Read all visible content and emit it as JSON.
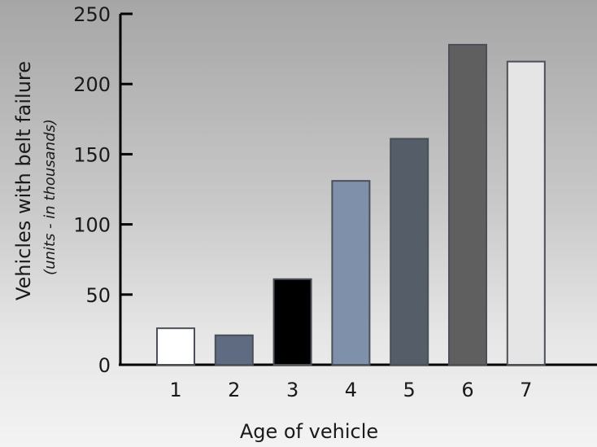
{
  "chart_data": {
    "type": "bar",
    "categories": [
      "1",
      "2",
      "3",
      "4",
      "5",
      "6",
      "7"
    ],
    "values": [
      26,
      21,
      61,
      131,
      161,
      228,
      216
    ],
    "bar_colors": [
      "#ffffff",
      "#5f6b80",
      "#000000",
      "#7f90aa",
      "#555d68",
      "#5f5f5f",
      "#e5e5e5"
    ],
    "title": "",
    "xlabel": "Age of vehicle",
    "ylabel": "Vehicles with belt failure",
    "ylabel_sub": "(units - in thousands)",
    "yticks": [
      "0",
      "50",
      "100",
      "150",
      "200",
      "250"
    ],
    "ylim": [
      0,
      250
    ],
    "grid": false,
    "legend": "none"
  }
}
